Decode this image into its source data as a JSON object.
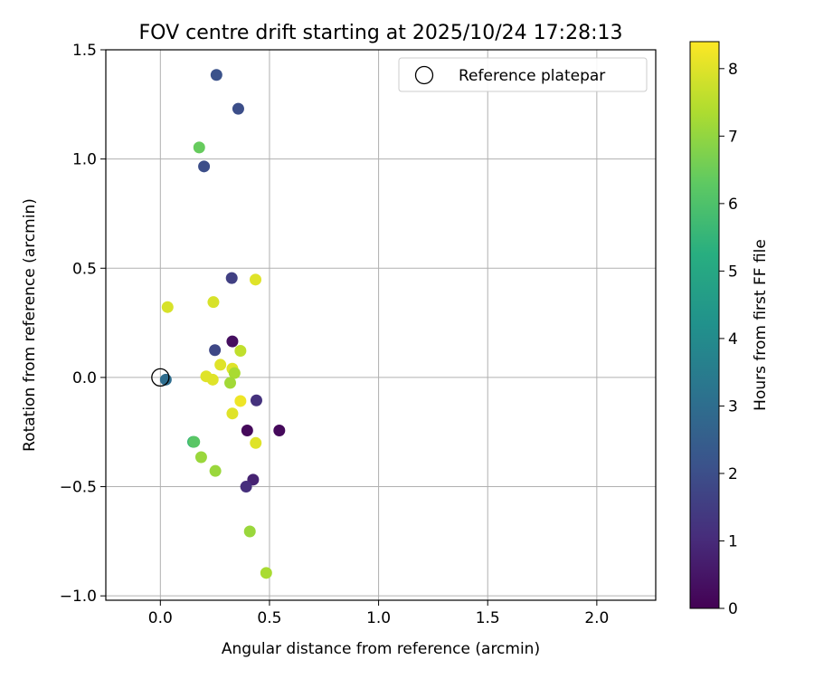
{
  "chart_data": {
    "type": "scatter",
    "title": "FOV centre drift starting at 2025/10/24 17:28:13",
    "xlabel": "Angular distance from reference (arcmin)",
    "ylabel": "Rotation from reference (arcmin)",
    "xlim": [
      -0.25,
      2.27
    ],
    "ylim": [
      -1.02,
      1.5
    ],
    "xticks": [
      0.0,
      0.5,
      1.0,
      1.5,
      2.0
    ],
    "xtick_labels": [
      "0.0",
      "0.5",
      "1.0",
      "1.5",
      "2.0"
    ],
    "yticks": [
      -1.0,
      -0.5,
      0.0,
      0.5,
      1.0,
      1.5
    ],
    "ytick_labels": [
      "−1.0",
      "−0.5",
      "0.0",
      "0.5",
      "1.0",
      "1.5"
    ],
    "grid": true,
    "legend": {
      "position": "top-right",
      "entries": [
        "Reference platepar"
      ]
    },
    "reference_point": {
      "x": 0.0,
      "y": 0.0,
      "marker": "open-circle",
      "label": "Reference platepar"
    },
    "colorbar": {
      "label": "Hours from first FF file",
      "range": [
        0,
        8.4
      ],
      "ticks": [
        0,
        1,
        2,
        3,
        4,
        5,
        6,
        7,
        8
      ],
      "tick_labels": [
        "0",
        "1",
        "2",
        "3",
        "4",
        "5",
        "6",
        "7",
        "8"
      ],
      "colormap": "viridis"
    },
    "points": [
      {
        "x": 0.257,
        "y": 1.385,
        "hours": 2.1
      },
      {
        "x": 0.357,
        "y": 1.23,
        "hours": 2.0
      },
      {
        "x": 0.178,
        "y": 1.053,
        "hours": 6.4
      },
      {
        "x": 0.2,
        "y": 0.966,
        "hours": 2.0
      },
      {
        "x": 0.327,
        "y": 0.455,
        "hours": 1.6
      },
      {
        "x": 0.436,
        "y": 0.448,
        "hours": 8.0
      },
      {
        "x": 0.243,
        "y": 0.345,
        "hours": 7.9
      },
      {
        "x": 0.033,
        "y": 0.322,
        "hours": 7.9
      },
      {
        "x": 0.33,
        "y": 0.165,
        "hours": 0.3
      },
      {
        "x": 0.25,
        "y": 0.125,
        "hours": 1.8
      },
      {
        "x": 0.367,
        "y": 0.122,
        "hours": 7.6
      },
      {
        "x": 0.275,
        "y": 0.058,
        "hours": 8.0
      },
      {
        "x": 0.33,
        "y": 0.04,
        "hours": 8.0
      },
      {
        "x": 0.34,
        "y": 0.02,
        "hours": 7.3
      },
      {
        "x": 0.21,
        "y": 0.005,
        "hours": 8.0
      },
      {
        "x": 0.24,
        "y": -0.01,
        "hours": 8.0
      },
      {
        "x": 0.025,
        "y": -0.01,
        "hours": 3.0
      },
      {
        "x": 0.32,
        "y": -0.025,
        "hours": 7.2
      },
      {
        "x": 0.367,
        "y": -0.108,
        "hours": 8.2
      },
      {
        "x": 0.44,
        "y": -0.105,
        "hours": 1.2
      },
      {
        "x": 0.33,
        "y": -0.165,
        "hours": 8.0
      },
      {
        "x": 0.398,
        "y": -0.243,
        "hours": 0.2
      },
      {
        "x": 0.545,
        "y": -0.243,
        "hours": 0.2
      },
      {
        "x": 0.437,
        "y": -0.3,
        "hours": 8.0
      },
      {
        "x": 0.15,
        "y": -0.295,
        "hours": 5.5
      },
      {
        "x": 0.155,
        "y": -0.295,
        "hours": 6.2
      },
      {
        "x": 0.187,
        "y": -0.365,
        "hours": 7.1
      },
      {
        "x": 0.252,
        "y": -0.428,
        "hours": 7.1
      },
      {
        "x": 0.425,
        "y": -0.468,
        "hours": 0.8
      },
      {
        "x": 0.393,
        "y": -0.5,
        "hours": 1.1
      },
      {
        "x": 0.41,
        "y": -0.705,
        "hours": 7.1
      },
      {
        "x": 0.485,
        "y": -0.895,
        "hours": 7.3
      }
    ]
  }
}
